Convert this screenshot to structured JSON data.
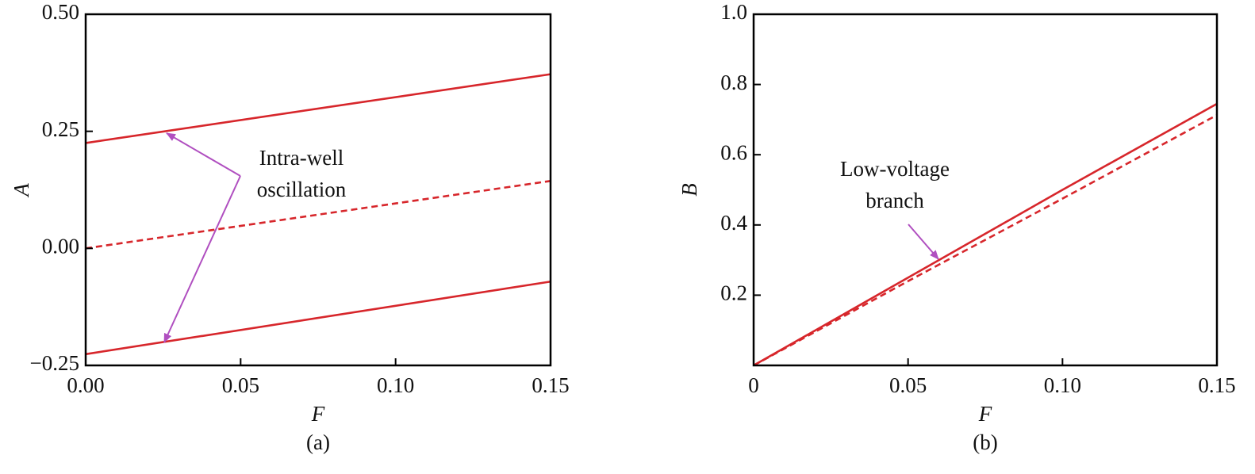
{
  "chart_data": [
    {
      "type": "line",
      "caption": "(a)",
      "xlabel": "F",
      "ylabel": "A",
      "xlim": [
        0,
        0.15
      ],
      "ylim": [
        -0.25,
        0.5
      ],
      "xticks": [
        {
          "value": 0,
          "label": "0.00"
        },
        0.05,
        {
          "value": 0.1,
          "label": "0.10"
        },
        0.15
      ],
      "yticks": [
        {
          "value": -0.25,
          "label": "−0.25"
        },
        {
          "value": 0,
          "label": "0.00"
        },
        0.25,
        {
          "value": 0.5,
          "label": "0.50"
        }
      ],
      "x": [
        0,
        0.15
      ],
      "series": [
        {
          "color": "#d7262b",
          "linestyle": "solid",
          "values": [
            0.225,
            0.372
          ]
        },
        {
          "color": "#d7262b",
          "linestyle": "dashed",
          "values": [
            0,
            0.144
          ]
        },
        {
          "color": "#d7262b",
          "linestyle": "solid",
          "values": [
            -0.226,
            -0.071
          ]
        }
      ],
      "annotation": [
        "Intra-well",
        "oscillation"
      ]
    },
    {
      "type": "line",
      "caption": "(b)",
      "xlabel": "F",
      "ylabel": "B",
      "xlim": [
        0,
        0.15
      ],
      "ylim": [
        0,
        1
      ],
      "xticks": [
        0,
        0.05,
        {
          "value": 0.1,
          "label": "0.10"
        },
        0.15
      ],
      "yticks": [
        0.2,
        0.4,
        0.6,
        0.8,
        {
          "value": 1,
          "label": "1.0"
        }
      ],
      "x": [
        0,
        0.05,
        0.1,
        0.15
      ],
      "series": [
        {
          "color": "#d7262b",
          "linestyle": "solid",
          "values": [
            0,
            0.25,
            0.5,
            0.745
          ]
        },
        {
          "color": "#d7262b",
          "linestyle": "dashed",
          "values": [
            0,
            0.24,
            0.475,
            0.713
          ]
        }
      ],
      "annotation": [
        "Low-voltage",
        "branch"
      ]
    }
  ]
}
